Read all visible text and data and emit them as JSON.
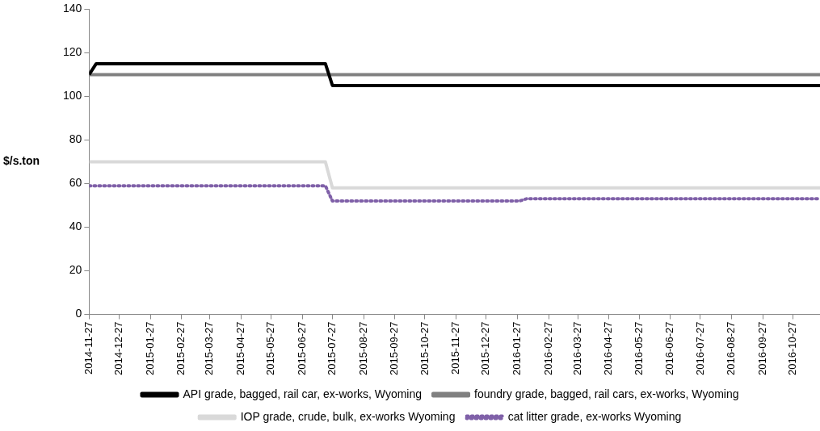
{
  "chart_data": {
    "type": "line",
    "ylabel": "$/s.ton",
    "grid": false,
    "legend": "bottom",
    "marker": "none",
    "line_style": "solid",
    "xlim": [
      "2014-11-27",
      "2016-11-23"
    ],
    "xticks": [
      "2014-11-27",
      "2014-12-27",
      "2015-01-27",
      "2015-02-27",
      "2015-03-27",
      "2015-04-27",
      "2015-05-27",
      "2015-06-27",
      "2015-07-27",
      "2015-08-27",
      "2015-09-27",
      "2015-10-27",
      "2015-11-27",
      "2015-12-27",
      "2016-01-27",
      "2016-02-27",
      "2016-03-27",
      "2016-04-27",
      "2016-05-27",
      "2016-06-27",
      "2016-07-27",
      "2016-08-27",
      "2016-09-27",
      "2016-10-27"
    ],
    "ylim": [
      0,
      140
    ],
    "yticks": [
      0,
      20,
      40,
      60,
      80,
      100,
      120,
      140
    ],
    "series": [
      {
        "name": "API grade, bagged, rail car, ex-works, Wyoming",
        "color": "#000000",
        "x": [
          "2014-11-27",
          "2014-12-04",
          "2015-07-20",
          "2015-07-27",
          "2016-11-23"
        ],
        "values": [
          110,
          115,
          115,
          105,
          105
        ]
      },
      {
        "name": "foundry grade, bagged, rail cars, ex-works, Wyoming",
        "color": "#808080",
        "x": [
          "2014-11-27",
          "2016-11-23"
        ],
        "values": [
          110,
          110
        ]
      },
      {
        "name": "IOP grade, crude, bulk, ex-works Wyoming",
        "color": "#d9d9d9",
        "x": [
          "2014-11-27",
          "2015-07-20",
          "2015-07-27",
          "2016-11-23"
        ],
        "values": [
          70,
          70,
          58,
          58
        ]
      },
      {
        "name": "cat litter grade, ex-works Wyoming",
        "color": "#7f60a8",
        "line_style": "dotted",
        "x": [
          "2014-11-27",
          "2015-07-20",
          "2015-07-27",
          "2016-01-29",
          "2016-02-05",
          "2016-11-23"
        ],
        "values": [
          59,
          59,
          52,
          52,
          53,
          53
        ]
      }
    ]
  }
}
